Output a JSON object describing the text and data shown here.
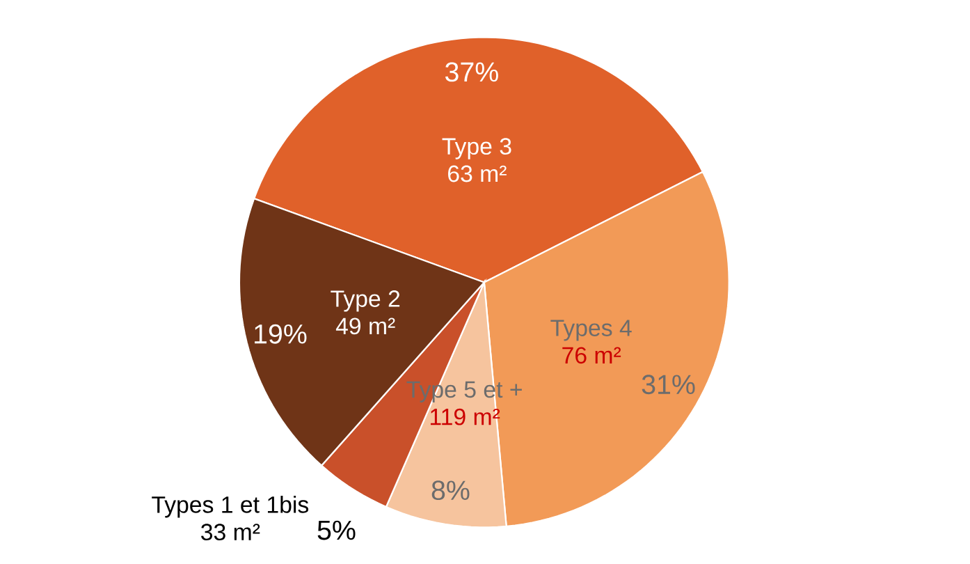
{
  "chart_data": {
    "type": "pie",
    "categories": [
      "Type 3",
      "Types 4",
      "Type 5 et +",
      "Types 1 et 1bis",
      "Type 2"
    ],
    "values": [
      37,
      31,
      8,
      5,
      19
    ],
    "colors": [
      "#e0612a",
      "#f29a57",
      "#f6c49e",
      "#c9502a",
      "#6f3417"
    ],
    "annotations": [
      "63 m²",
      "76 m²",
      "119 m²",
      "33 m²",
      "49 m²"
    ],
    "value_labels": [
      "37%",
      "31%",
      "8%",
      "5%",
      "19%"
    ]
  }
}
